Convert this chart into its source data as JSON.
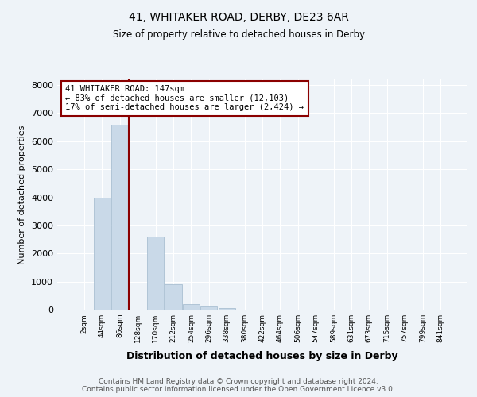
{
  "title1": "41, WHITAKER ROAD, DERBY, DE23 6AR",
  "title2": "Size of property relative to detached houses in Derby",
  "xlabel": "Distribution of detached houses by size in Derby",
  "ylabel": "Number of detached properties",
  "bin_labels": [
    "2sqm",
    "44sqm",
    "86sqm",
    "128sqm",
    "170sqm",
    "212sqm",
    "254sqm",
    "296sqm",
    "338sqm",
    "380sqm",
    "422sqm",
    "464sqm",
    "506sqm",
    "547sqm",
    "589sqm",
    "631sqm",
    "673sqm",
    "715sqm",
    "757sqm",
    "799sqm",
    "841sqm"
  ],
  "bar_values": [
    0,
    4000,
    6600,
    0,
    2600,
    900,
    200,
    100,
    50,
    0,
    0,
    0,
    0,
    0,
    0,
    0,
    0,
    0,
    0,
    0,
    0
  ],
  "bar_color": "#c9d9e8",
  "bar_edgecolor": "#a0b8cc",
  "vline_x_index": 3,
  "vline_color": "#8b0000",
  "annotation_text": "41 WHITAKER ROAD: 147sqm\n← 83% of detached houses are smaller (12,103)\n17% of semi-detached houses are larger (2,424) →",
  "annotation_box_color": "#ffffff",
  "annotation_border_color": "#8b0000",
  "ylim": [
    0,
    8200
  ],
  "yticks": [
    0,
    1000,
    2000,
    3000,
    4000,
    5000,
    6000,
    7000,
    8000
  ],
  "footer": "Contains HM Land Registry data © Crown copyright and database right 2024.\nContains public sector information licensed under the Open Government Licence v3.0.",
  "bg_color": "#eef3f8",
  "plot_bg_color": "#eef3f8"
}
